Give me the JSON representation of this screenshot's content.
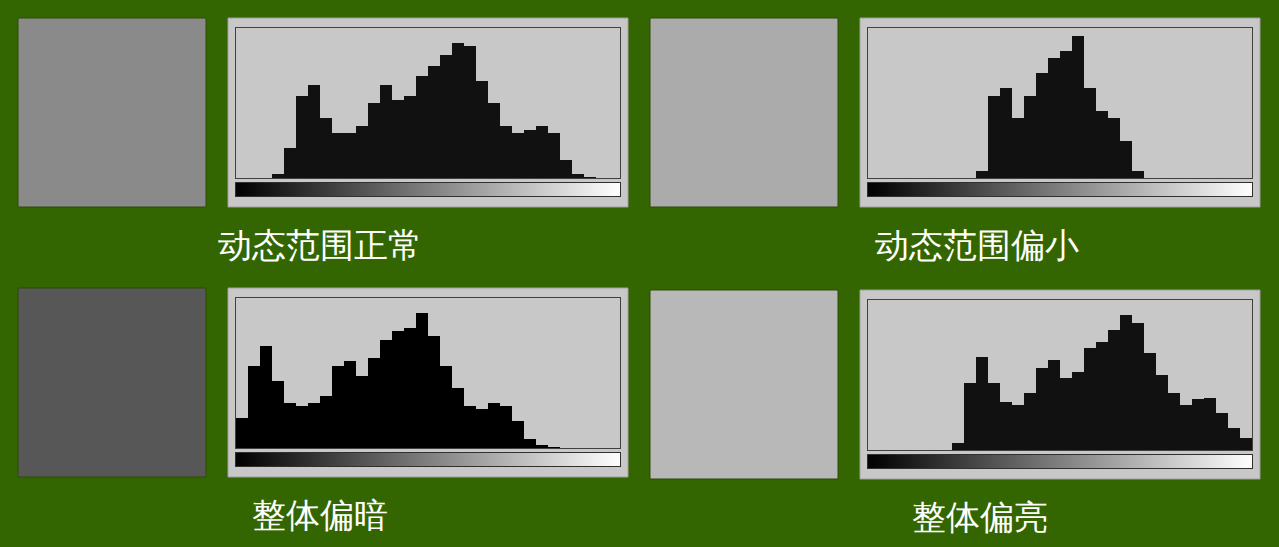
{
  "chart_data": [
    {
      "type": "histogram",
      "title": "动态范围正常",
      "bins": [
        0,
        8,
        16,
        24,
        32,
        40,
        48,
        56,
        64,
        72,
        80,
        88,
        96,
        104,
        112,
        120,
        128,
        136,
        144,
        152,
        160,
        168,
        176,
        184,
        192,
        200,
        208,
        216,
        224,
        232,
        240,
        248,
        256
      ],
      "counts": [
        0,
        0,
        0,
        3,
        20,
        55,
        62,
        40,
        30,
        30,
        35,
        50,
        62,
        52,
        55,
        68,
        75,
        82,
        90,
        88,
        65,
        50,
        35,
        30,
        32,
        35,
        30,
        12,
        3,
        1,
        0,
        0
      ],
      "xlim": [
        0,
        256
      ],
      "ylim": [
        0,
        100
      ],
      "tick_labels": false,
      "grid": false,
      "color": "#111111"
    },
    {
      "type": "histogram",
      "title": "动态范围偏小",
      "bins": [
        0,
        8,
        16,
        24,
        32,
        40,
        48,
        56,
        64,
        72,
        80,
        88,
        96,
        104,
        112,
        120,
        128,
        136,
        144,
        152,
        160,
        168,
        176,
        184,
        192,
        200,
        208,
        216,
        224,
        232,
        240,
        248,
        256
      ],
      "counts": [
        0,
        0,
        0,
        0,
        0,
        0,
        0,
        0,
        0,
        5,
        55,
        60,
        40,
        55,
        70,
        80,
        85,
        95,
        60,
        45,
        40,
        25,
        5,
        0,
        0,
        0,
        0,
        0,
        0,
        0,
        0,
        0
      ],
      "xlim": [
        0,
        256
      ],
      "ylim": [
        0,
        100
      ],
      "tick_labels": false,
      "grid": false,
      "color": "#111111"
    },
    {
      "type": "histogram",
      "title": "整体偏暗",
      "bins": [
        0,
        8,
        16,
        24,
        32,
        40,
        48,
        56,
        64,
        72,
        80,
        88,
        96,
        104,
        112,
        120,
        128,
        136,
        144,
        152,
        160,
        168,
        176,
        184,
        192,
        200,
        208,
        216,
        224,
        232,
        240,
        248,
        256
      ],
      "counts": [
        20,
        55,
        68,
        45,
        30,
        28,
        30,
        35,
        55,
        58,
        48,
        60,
        72,
        78,
        80,
        90,
        75,
        55,
        40,
        28,
        26,
        30,
        28,
        18,
        6,
        2,
        1,
        0,
        0,
        0,
        0,
        0
      ],
      "xlim": [
        0,
        256
      ],
      "ylim": [
        0,
        100
      ],
      "tick_labels": false,
      "grid": false,
      "color": "#000000"
    },
    {
      "type": "histogram",
      "title": "整体偏亮",
      "bins": [
        0,
        8,
        16,
        24,
        32,
        40,
        48,
        56,
        64,
        72,
        80,
        88,
        96,
        104,
        112,
        120,
        128,
        136,
        144,
        152,
        160,
        168,
        176,
        184,
        192,
        200,
        208,
        216,
        224,
        232,
        240,
        248,
        256
      ],
      "counts": [
        0,
        0,
        0,
        0,
        0,
        0,
        0,
        5,
        45,
        62,
        45,
        32,
        30,
        38,
        55,
        60,
        48,
        52,
        68,
        72,
        80,
        90,
        85,
        65,
        50,
        38,
        30,
        34,
        35,
        25,
        15,
        8
      ],
      "xlim": [
        0,
        256
      ],
      "ylim": [
        0,
        100
      ],
      "tick_labels": false,
      "grid": false,
      "color": "#111111"
    }
  ]
}
